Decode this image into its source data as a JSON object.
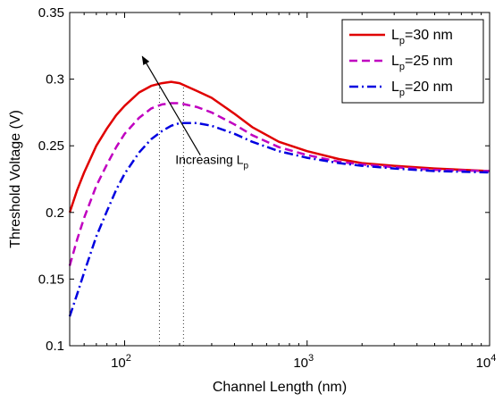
{
  "chart_data": {
    "type": "line",
    "title": "",
    "xlabel": "Channel Length (nm)",
    "ylabel": "Threshold Voltage (V)",
    "xscale": "log",
    "xlim": [
      50,
      10000
    ],
    "ylim": [
      0.1,
      0.35
    ],
    "xticks": [
      {
        "value": 100,
        "base": "10",
        "exp": "2"
      },
      {
        "value": 1000,
        "base": "10",
        "exp": "3"
      },
      {
        "value": 10000,
        "base": "10",
        "exp": "4"
      }
    ],
    "yticks": [
      {
        "value": 0.1,
        "label": "0.1"
      },
      {
        "value": 0.15,
        "label": "0.15"
      },
      {
        "value": 0.2,
        "label": "0.2"
      },
      {
        "value": 0.25,
        "label": "0.25"
      },
      {
        "value": 0.3,
        "label": "0.3"
      },
      {
        "value": 0.35,
        "label": "0.35"
      }
    ],
    "grid": false,
    "legend_position": "top-right",
    "series": [
      {
        "label_main": "L",
        "label_sub": "p",
        "label_rest": "=30 nm",
        "color": "#e00000",
        "style": "solid",
        "x": [
          50,
          55,
          60,
          70,
          80,
          90,
          100,
          120,
          140,
          160,
          180,
          200,
          250,
          300,
          400,
          500,
          700,
          1000,
          1500,
          2000,
          3000,
          5000,
          10000
        ],
        "y": [
          0.2,
          0.217,
          0.23,
          0.25,
          0.263,
          0.273,
          0.28,
          0.29,
          0.295,
          0.297,
          0.298,
          0.297,
          0.291,
          0.286,
          0.274,
          0.264,
          0.253,
          0.246,
          0.24,
          0.237,
          0.235,
          0.233,
          0.231
        ]
      },
      {
        "label_main": "L",
        "label_sub": "p",
        "label_rest": "=25 nm",
        "color": "#c000c0",
        "style": "dashed",
        "x": [
          50,
          55,
          60,
          70,
          80,
          90,
          100,
          120,
          140,
          160,
          180,
          200,
          250,
          300,
          400,
          500,
          700,
          1000,
          1500,
          2000,
          3000,
          5000,
          10000
        ],
        "y": [
          0.16,
          0.18,
          0.196,
          0.22,
          0.236,
          0.249,
          0.259,
          0.271,
          0.278,
          0.281,
          0.282,
          0.282,
          0.279,
          0.275,
          0.266,
          0.258,
          0.249,
          0.243,
          0.238,
          0.236,
          0.234,
          0.232,
          0.231
        ]
      },
      {
        "label_main": "L",
        "label_sub": "p",
        "label_rest": "=20 nm",
        "color": "#0000e0",
        "style": "dashdot",
        "x": [
          50,
          55,
          60,
          70,
          80,
          90,
          100,
          120,
          140,
          160,
          180,
          200,
          250,
          300,
          400,
          500,
          700,
          1000,
          1500,
          2000,
          3000,
          5000,
          10000
        ],
        "y": [
          0.122,
          0.139,
          0.155,
          0.182,
          0.201,
          0.217,
          0.229,
          0.245,
          0.255,
          0.261,
          0.265,
          0.267,
          0.267,
          0.265,
          0.259,
          0.253,
          0.246,
          0.241,
          0.237,
          0.235,
          0.233,
          0.231,
          0.23
        ]
      }
    ],
    "reference_lines": [
      {
        "x": 155,
        "y_from": 0.1,
        "y_to": 0.297
      },
      {
        "x": 210,
        "y_from": 0.1,
        "y_to": 0.298
      }
    ],
    "annotation": {
      "text_main": "Increasing L",
      "text_sub": "p",
      "arrow_from": {
        "x": 260,
        "y": 0.243
      },
      "arrow_to": {
        "x": 125,
        "y": 0.317
      }
    }
  }
}
